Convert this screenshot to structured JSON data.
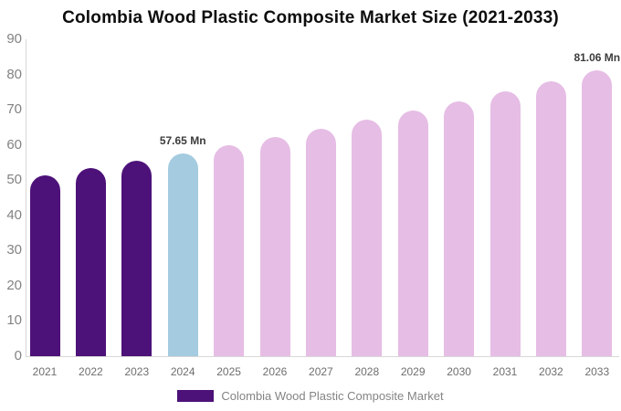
{
  "header": {
    "title": "Colombia Wood Plastic Composite Market Size (2021-2033)"
  },
  "legend": {
    "label": "Colombia Wood Plastic Composite Market",
    "swatch_color": "#4d1279"
  },
  "chart_data": {
    "type": "bar",
    "title": "Colombia Wood Plastic Composite Market Size (2021-2033)",
    "unit": "Mn",
    "categories": [
      "2021",
      "2022",
      "2023",
      "2024",
      "2025",
      "2026",
      "2027",
      "2028",
      "2029",
      "2030",
      "2031",
      "2032",
      "2033"
    ],
    "values": [
      51.46,
      53.45,
      55.51,
      57.65,
      59.87,
      62.18,
      64.58,
      67.07,
      69.66,
      72.35,
      75.14,
      78.04,
      81.06
    ],
    "bar_colors": [
      "#4d1279",
      "#4d1279",
      "#4d1279",
      "#a4cbdf",
      "#e6bde5",
      "#e6bde5",
      "#e6bde5",
      "#e6bde5",
      "#e6bde5",
      "#e6bde5",
      "#e6bde5",
      "#e6bde5",
      "#e6bde5"
    ],
    "color_roles": {
      "historical": "#4d1279",
      "base_year": "#a4cbdf",
      "forecast": "#e6bde5"
    },
    "annotations": [
      {
        "category": "2024",
        "label": "57.65 Mn"
      },
      {
        "category": "2033",
        "label": "81.06 Mn"
      }
    ],
    "xlabel": "",
    "ylabel": "",
    "ylim": [
      0,
      90
    ],
    "yticks": [
      0,
      10,
      20,
      30,
      40,
      50,
      60,
      70,
      80,
      90
    ],
    "grid": false,
    "legend_position": "bottom",
    "colors": {
      "axis_line": "#d8d8d8",
      "y_tick_label": "#828282",
      "x_tick_label": "#6e6e6e",
      "annotation_text": "#3c3c3c",
      "legend_text": "#848484",
      "title_text": "#0d0d0d",
      "background": "#ffffff"
    }
  }
}
